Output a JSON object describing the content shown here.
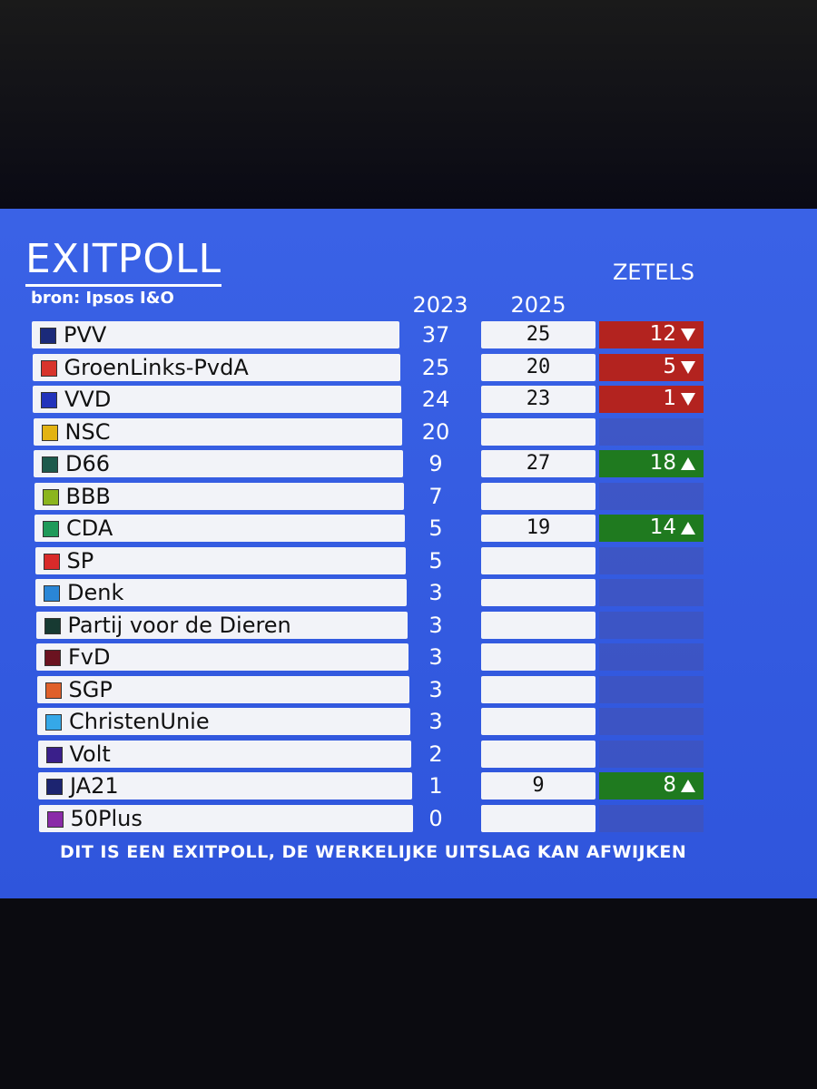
{
  "header": {
    "title": "EXITPOLL",
    "source": "bron: Ipsos I&O"
  },
  "columns": {
    "first": "2023",
    "second": "2025",
    "change": "ZETELS"
  },
  "colors": {
    "down": "#b3231f",
    "up": "#1f7a1f"
  },
  "rows": [
    {
      "party": "PVV",
      "color": "#1b2a7a",
      "first": 37,
      "second": 25,
      "change": 12,
      "direction": "down"
    },
    {
      "party": "GroenLinks-PvdA",
      "color": "#d8342c",
      "first": 25,
      "second": 20,
      "change": 5,
      "direction": "down"
    },
    {
      "party": "VVD",
      "color": "#2233bb",
      "first": 24,
      "second": 23,
      "change": 1,
      "direction": "down"
    },
    {
      "party": "NSC",
      "color": "#e3b312",
      "first": 20,
      "second": null
    },
    {
      "party": "D66",
      "color": "#1e5a4c",
      "first": 9,
      "second": 27,
      "change": 18,
      "direction": "up"
    },
    {
      "party": "BBB",
      "color": "#8bb51f",
      "first": 7,
      "second": null
    },
    {
      "party": "CDA",
      "color": "#1f9a5a",
      "first": 5,
      "second": 19,
      "change": 14,
      "direction": "up"
    },
    {
      "party": "SP",
      "color": "#d82a2a",
      "first": 5,
      "second": null
    },
    {
      "party": "Denk",
      "color": "#2a86d6",
      "first": 3,
      "second": null
    },
    {
      "party": "Partij voor de Dieren",
      "color": "#173a32",
      "first": 3,
      "second": null
    },
    {
      "party": "FvD",
      "color": "#6b1320",
      "first": 3,
      "second": null
    },
    {
      "party": "SGP",
      "color": "#e0602a",
      "first": 3,
      "second": null
    },
    {
      "party": "ChristenUnie",
      "color": "#35a8e8",
      "first": 3,
      "second": null
    },
    {
      "party": "Volt",
      "color": "#3a1f8a",
      "first": 2,
      "second": null
    },
    {
      "party": "JA21",
      "color": "#1c2470",
      "first": 1,
      "second": 9,
      "change": 8,
      "direction": "up"
    },
    {
      "party": "50Plus",
      "color": "#8a2aa8",
      "first": 0,
      "second": null
    }
  ],
  "footer": "DIT IS EEN EXITPOLL, DE WERKELIJKE UITSLAG KAN AFWIJKEN"
}
